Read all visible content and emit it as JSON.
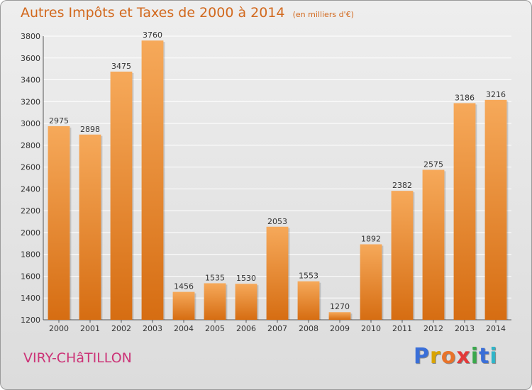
{
  "title": "Autres Impôts et Taxes de 2000 à 2014",
  "subtitle": "(en milliers d'€)",
  "commune": "VIRY-CHâTILLON",
  "logo": {
    "text": "Proxiti",
    "colors": [
      "#3a6fd8",
      "#d9a400",
      "#e8732a",
      "#e33a3a",
      "#3aa84c",
      "#3a6fd8",
      "#2fb5c8"
    ]
  },
  "colors": {
    "bar_light": "#f6a95a",
    "bar_dark": "#d66d12",
    "title": "#d2691e",
    "commune": "#cc3377",
    "grid": "#ffffff"
  },
  "chart_data": {
    "type": "bar",
    "title": "Autres Impôts et Taxes de 2000 à 2014",
    "subtitle": "(en milliers d'€)",
    "xlabel": "",
    "ylabel": "",
    "categories": [
      "2000",
      "2001",
      "2002",
      "2003",
      "2004",
      "2005",
      "2006",
      "2007",
      "2008",
      "2009",
      "2010",
      "2011",
      "2012",
      "2013",
      "2014"
    ],
    "values": [
      2975,
      2898,
      3475,
      3760,
      1456,
      1535,
      1530,
      2053,
      1553,
      1270,
      1892,
      2382,
      2575,
      3186,
      3216
    ],
    "ylim": [
      1200,
      3800
    ],
    "yticks": [
      1200,
      1400,
      1600,
      1800,
      2000,
      2200,
      2400,
      2600,
      2800,
      3000,
      3200,
      3400,
      3600,
      3800
    ],
    "grid": true,
    "data_labels": true
  }
}
